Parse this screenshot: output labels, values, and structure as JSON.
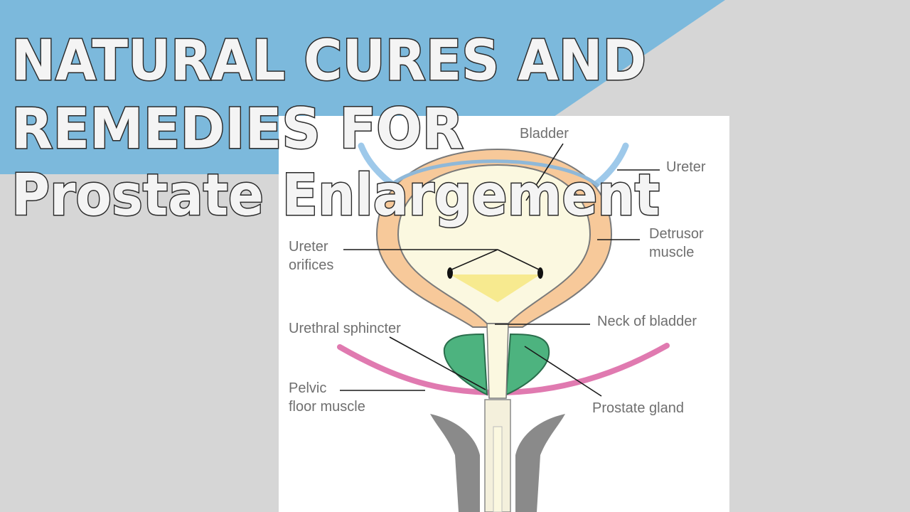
{
  "title": {
    "line1": "NATURAL CURES AND",
    "line2": "REMEDIES FOR",
    "line3": "Prostate Enlargement"
  },
  "diagram": {
    "labels": {
      "bladder": "Bladder",
      "ureter": "Ureter",
      "detrusor_line1": "Detrusor",
      "detrusor_line2": "muscle",
      "ureter_orifices_line1": "Ureter",
      "ureter_orifices_line2": "orifices",
      "neck_of_bladder": "Neck of bladder",
      "urethral_sphincter": "Urethral sphincter",
      "pelvic_line1": "Pelvic",
      "pelvic_line2": "floor muscle",
      "prostate_gland": "Prostate gland"
    }
  },
  "colors": {
    "background": "#d6d6d6",
    "banner_blue": "#7cb9dc",
    "panel": "#ffffff",
    "detrusor": "#f7c99a",
    "bladder_fill": "#fbf8e0",
    "trigone": "#f7ea8f",
    "prostate": "#4db37f",
    "pelvic_floor": "#e07ab0",
    "ureter": "#9ec9ea",
    "penile_tissue": "#8a8a8a"
  }
}
